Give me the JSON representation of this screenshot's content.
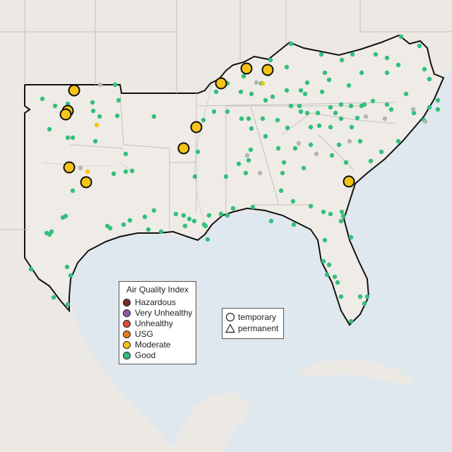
{
  "colors": {
    "water": "#dfe7ef",
    "land": "#ece8e3",
    "region_fill": "#efebe7",
    "boundary": "#c4c0bc",
    "region_outline": "#111111",
    "hazardous": "#7a2a2a",
    "very_unhealthy": "#8e5ab0",
    "unhealthy": "#e04a36",
    "usg": "#e57b1f",
    "moderate": "#f5c417",
    "good": "#33c07a",
    "no_data": "#b4b4b4"
  },
  "legend": {
    "title": "Air Quality Index",
    "items": [
      {
        "label": "Hazardous",
        "color_key": "hazardous"
      },
      {
        "label": "Very Unhealthy",
        "color_key": "very_unhealthy"
      },
      {
        "label": "Unhealthy",
        "color_key": "unhealthy"
      },
      {
        "label": "USG",
        "color_key": "usg"
      },
      {
        "label": "Moderate",
        "color_key": "moderate"
      },
      {
        "label": "Good",
        "color_key": "good"
      }
    ]
  },
  "monitor_types": {
    "temporary": "temporary",
    "permanent": "permanent"
  }
}
